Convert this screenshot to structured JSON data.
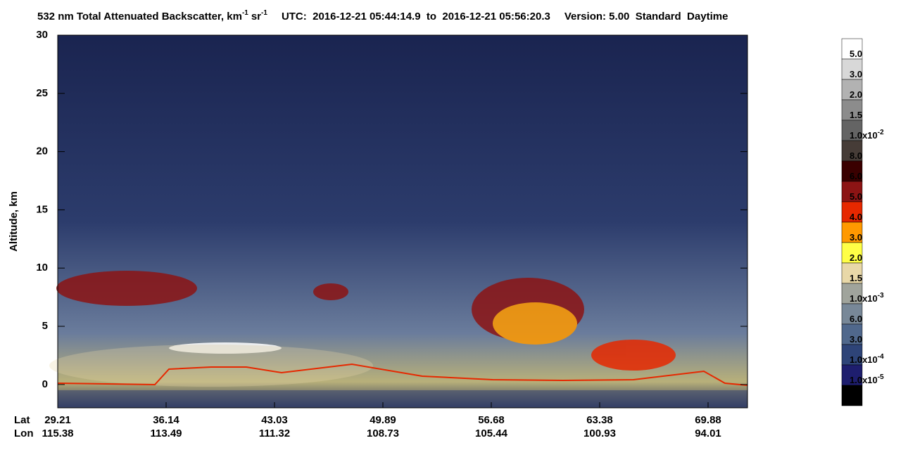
{
  "chart_data": {
    "type": "heatmap",
    "title": {
      "main": "532 nm Total Attenuated Backscatter, km",
      "sup1": "-1",
      "unit2": "sr",
      "sup2": "-1",
      "utc": "UTC:  2016-12-21 05:44:14.9  to  2016-12-21 05:56:20.3",
      "version": "Version: 5.00  Standard  Daytime"
    },
    "y_label": "Altitude, km",
    "ylim": [
      -2,
      30
    ],
    "yticks": [
      0,
      5,
      10,
      15,
      20,
      25,
      30
    ],
    "x_rows": [
      {
        "name": "Lat",
        "labels": [
          "29.21",
          "36.14",
          "43.03",
          "49.89",
          "56.68",
          "63.38",
          "69.88"
        ]
      },
      {
        "name": "Lon",
        "labels": [
          "115.38",
          "113.49",
          "111.32",
          "108.73",
          "105.44",
          "100.93",
          "94.01"
        ]
      }
    ],
    "colorbar": {
      "colors": [
        "#ffffff",
        "#d8d8d8",
        "#b2b2b2",
        "#8c8c8c",
        "#646464",
        "#463c37",
        "#3a0000",
        "#8c1414",
        "#e62800",
        "#ff9900",
        "#ffff46",
        "#e8d8a8",
        "#a0a49c",
        "#788898",
        "#50688c",
        "#2e4478",
        "#1e1e6e",
        "#000000"
      ],
      "labels": [
        {
          "text": "5.0"
        },
        {
          "text": "3.0"
        },
        {
          "text": "2.0"
        },
        {
          "text": "1.5"
        },
        {
          "text": "1.0x10",
          "sup": "-2"
        },
        {
          "text": "8.0"
        },
        {
          "text": "6.0"
        },
        {
          "text": "5.0"
        },
        {
          "text": "4.0"
        },
        {
          "text": "3.0"
        },
        {
          "text": "2.0"
        },
        {
          "text": "1.5"
        },
        {
          "text": "1.0x10",
          "sup": "-3"
        },
        {
          "text": "6.0"
        },
        {
          "text": "3.0"
        },
        {
          "text": "1.0x10",
          "sup": "-4"
        },
        {
          "text": "1.0x10",
          "sup": "-5"
        }
      ]
    }
  }
}
